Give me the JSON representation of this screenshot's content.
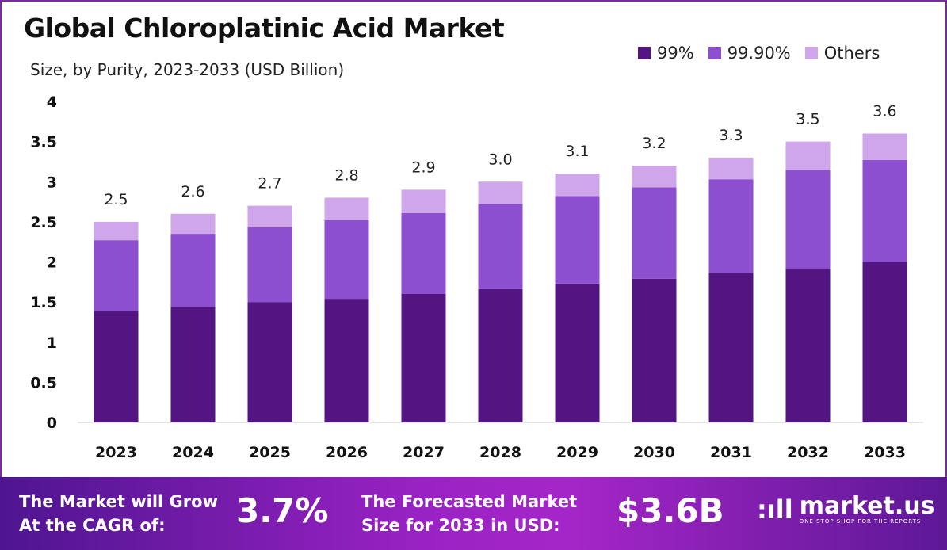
{
  "chart_data": {
    "type": "bar",
    "stacked": true,
    "title": "Global Chloroplatinic Acid Market",
    "subtitle": "Size, by Purity, 2023-2033 (USD Billion)",
    "xlabel": "",
    "ylabel": "",
    "ylim": [
      0,
      4
    ],
    "yticks": [
      "0",
      "0.5",
      "1",
      "1.5",
      "2",
      "2.5",
      "3",
      "3.5",
      "4"
    ],
    "grid": false,
    "legend_position": "top-right",
    "categories": [
      "2023",
      "2024",
      "2025",
      "2026",
      "2027",
      "2028",
      "2029",
      "2030",
      "2031",
      "2032",
      "2033"
    ],
    "series": [
      {
        "name": "99%",
        "color": "#521582",
        "values": [
          1.39,
          1.44,
          1.5,
          1.54,
          1.6,
          1.66,
          1.73,
          1.79,
          1.86,
          1.92,
          2.0
        ]
      },
      {
        "name": "99.90%",
        "color": "#8b4fd0",
        "values": [
          0.88,
          0.91,
          0.93,
          0.98,
          1.01,
          1.06,
          1.09,
          1.14,
          1.17,
          1.23,
          1.27
        ]
      },
      {
        "name": "Others",
        "color": "#d0a6ea",
        "values": [
          0.23,
          0.25,
          0.27,
          0.28,
          0.29,
          0.28,
          0.28,
          0.27,
          0.27,
          0.35,
          0.33
        ]
      }
    ],
    "totals": [
      "2.5",
      "2.6",
      "2.7",
      "2.8",
      "2.9",
      "3.0",
      "3.1",
      "3.2",
      "3.3",
      "3.5",
      "3.6"
    ]
  },
  "footer": {
    "cagr_label_line1": "The Market will Grow",
    "cagr_label_line2": "At the CAGR of:",
    "cagr_value": "3.7%",
    "forecast_label_line1": "The Forecasted Market",
    "forecast_label_line2": "Size for 2033 in USD:",
    "forecast_value": "$3.6B",
    "brand_name": "market.us",
    "brand_tagline": "ONE STOP SHOP FOR THE REPORTS"
  }
}
